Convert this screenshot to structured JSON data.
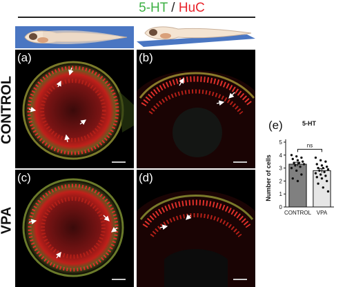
{
  "figure": {
    "title_marker1": "5-HT",
    "title_sep": " / ",
    "title_marker2": "HuC",
    "row_labels": [
      "CONTROL",
      "VPA"
    ],
    "panel_labels": [
      "(a)",
      "(b)",
      "(c)",
      "(d)"
    ],
    "chart_panel_label": "(e)",
    "colors": {
      "marker1": "#3cb043",
      "marker2": "#e8232b"
    }
  },
  "chart_data": {
    "type": "bar",
    "title": "5-HT",
    "ylabel": "Number of cells",
    "categories": [
      "CONTROL",
      "VPA"
    ],
    "values": [
      3.3,
      2.8
    ],
    "ylim": [
      0,
      5
    ],
    "yticks": [
      0,
      1,
      2,
      3,
      4,
      5
    ],
    "significance": "ns",
    "bar_colors": [
      "#808080",
      "#e6e6e6"
    ],
    "points": [
      [
        4.0,
        3.9,
        3.8,
        3.7,
        3.6,
        3.5,
        3.4,
        3.4,
        3.3,
        3.2,
        3.1,
        3.0,
        2.8,
        2.5,
        2.2,
        2.0
      ],
      [
        3.8,
        3.6,
        3.5,
        3.3,
        3.2,
        3.1,
        3.0,
        3.0,
        2.9,
        2.8,
        2.7,
        2.6,
        2.5,
        2.4,
        2.3,
        2.2,
        2.0,
        1.8,
        1.5,
        1.2
      ]
    ],
    "errors": [
      0.15,
      0.15
    ]
  }
}
